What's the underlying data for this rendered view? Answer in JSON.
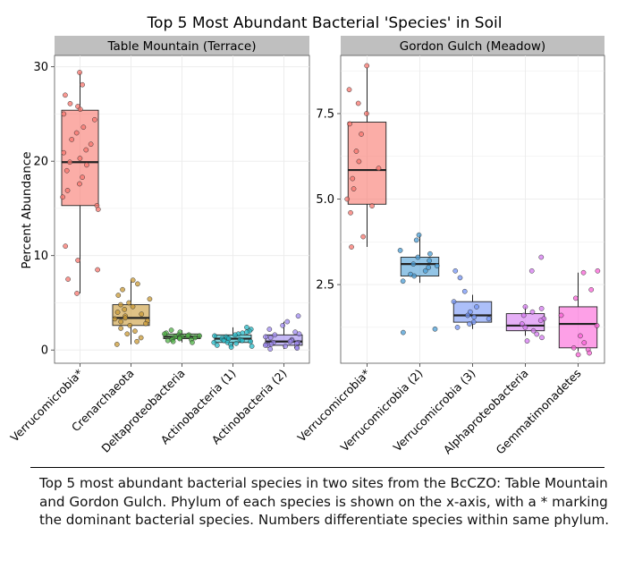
{
  "figure": {
    "title": "Top 5 Most Abundant Bacterial 'Species' in Soil",
    "ylabel": "Percent Abundance",
    "caption": "Top 5 most abundant bacterial species in two sites from the BcCZO: Table Mountain and Gordon Gulch. Phylum of each species is shown on the x-axis, with a * marking the dominant bacterial species. Numbers differentiate species within same phylum."
  },
  "colors": {
    "panel_bg": "#ffffff",
    "strip_bg": "#bfbfbf",
    "grid": "#ebebeb",
    "categories": [
      "#f8766d",
      "#c99a36",
      "#53b44a",
      "#26b9c7",
      "#9f8af0"
    ],
    "categories_right": [
      "#f8766d",
      "#4b9ed6",
      "#7595f5",
      "#d57af2",
      "#fb61d7"
    ]
  },
  "chart_data": [
    {
      "type": "box",
      "panel": "Table Mountain (Terrace)",
      "categories": [
        "Verrucomicrobia*",
        "Crenarchaeota",
        "Deltaproteobacteria",
        "Actinobacteria (1)",
        "Actinobacteria (2)"
      ],
      "ylim": [
        -1.4,
        31.2
      ],
      "yticks": [
        0,
        10,
        20,
        30
      ],
      "box": [
        {
          "min": 6.0,
          "q1": 15.3,
          "median": 19.9,
          "q3": 25.4,
          "max": 29.4
        },
        {
          "min": 0.6,
          "q1": 2.6,
          "median": 3.4,
          "q3": 4.8,
          "max": 7.4
        },
        {
          "min": 0.8,
          "q1": 1.2,
          "median": 1.4,
          "q3": 1.7,
          "max": 2.1
        },
        {
          "min": 0.3,
          "q1": 0.8,
          "median": 1.2,
          "q3": 1.6,
          "max": 2.4
        },
        {
          "min": 0.1,
          "q1": 0.5,
          "median": 0.9,
          "q3": 1.6,
          "max": 3.0
        }
      ],
      "points": [
        [
          29.4,
          28.1,
          27.0,
          26.1,
          25.8,
          25.5,
          25.0,
          24.4,
          23.6,
          23.0,
          22.3,
          21.8,
          21.2,
          20.9,
          20.3,
          19.9,
          19.6,
          19.0,
          18.3,
          17.6,
          16.9,
          16.2,
          15.3,
          14.9,
          11.0,
          9.5,
          8.5,
          7.5,
          6.0
        ],
        [
          7.4,
          7.0,
          6.4,
          5.8,
          5.4,
          5.0,
          4.8,
          4.6,
          4.3,
          4.0,
          3.8,
          3.6,
          3.4,
          3.3,
          3.1,
          3.0,
          2.8,
          2.6,
          2.3,
          2.0,
          1.7,
          1.3,
          0.9,
          0.6
        ],
        [
          2.1,
          1.9,
          1.8,
          1.7,
          1.6,
          1.6,
          1.5,
          1.5,
          1.4,
          1.4,
          1.4,
          1.3,
          1.3,
          1.3,
          1.2,
          1.2,
          1.1,
          1.1,
          1.0,
          0.9,
          0.8
        ],
        [
          2.4,
          2.2,
          2.0,
          1.9,
          1.8,
          1.7,
          1.6,
          1.5,
          1.4,
          1.3,
          1.2,
          1.2,
          1.1,
          1.0,
          1.0,
          0.9,
          0.8,
          0.8,
          0.7,
          0.6,
          0.5,
          0.4,
          0.3
        ],
        [
          3.6,
          3.0,
          2.6,
          2.2,
          1.9,
          1.7,
          1.6,
          1.4,
          1.3,
          1.1,
          1.0,
          0.9,
          0.8,
          0.8,
          0.7,
          0.6,
          0.6,
          0.5,
          0.5,
          0.4,
          0.3,
          0.2,
          0.1
        ]
      ]
    },
    {
      "type": "box",
      "panel": "Gordon Gulch (Meadow)",
      "categories": [
        "Verrucomicrobia*",
        "Verrucomicrobia (2)",
        "Verrucomicrobia (3)",
        "Alphaproteobacteria",
        "Gemmatimonadetes"
      ],
      "ylim": [
        0.2,
        9.2
      ],
      "yticks": [
        2.5,
        5.0,
        7.5
      ],
      "ytick_labels": [
        "2.5",
        "5.0",
        "7.5"
      ],
      "box": [
        {
          "min": 3.6,
          "q1": 4.85,
          "median": 5.85,
          "q3": 7.25,
          "max": 8.85
        },
        {
          "min": 2.55,
          "q1": 2.75,
          "median": 3.1,
          "q3": 3.3,
          "max": 3.95
        },
        {
          "min": 1.2,
          "q1": 1.4,
          "median": 1.6,
          "q3": 2.0,
          "max": 2.2
        },
        {
          "min": 1.0,
          "q1": 1.15,
          "median": 1.3,
          "q3": 1.65,
          "max": 1.85
        },
        {
          "min": 0.55,
          "q1": 0.65,
          "median": 1.35,
          "q3": 1.85,
          "max": 2.85
        }
      ],
      "points": [
        [
          8.9,
          8.2,
          7.8,
          7.5,
          7.2,
          6.9,
          6.4,
          6.1,
          5.9,
          5.6,
          5.3,
          5.0,
          4.8,
          4.6,
          3.9,
          3.6
        ],
        [
          3.95,
          3.8,
          3.5,
          3.4,
          3.3,
          3.2,
          3.1,
          3.05,
          3.0,
          2.9,
          2.8,
          2.75,
          2.6,
          1.2,
          1.1
        ],
        [
          2.9,
          2.7,
          2.3,
          2.0,
          1.85,
          1.7,
          1.6,
          1.55,
          1.5,
          1.4,
          1.35,
          1.25
        ],
        [
          3.3,
          2.9,
          1.85,
          1.8,
          1.7,
          1.6,
          1.5,
          1.45,
          1.35,
          1.25,
          1.15,
          1.05,
          0.95,
          0.85
        ],
        [
          2.9,
          2.85,
          2.35,
          2.1,
          1.6,
          1.3,
          1.0,
          0.8,
          0.65,
          0.6,
          0.5,
          0.45
        ]
      ]
    }
  ]
}
